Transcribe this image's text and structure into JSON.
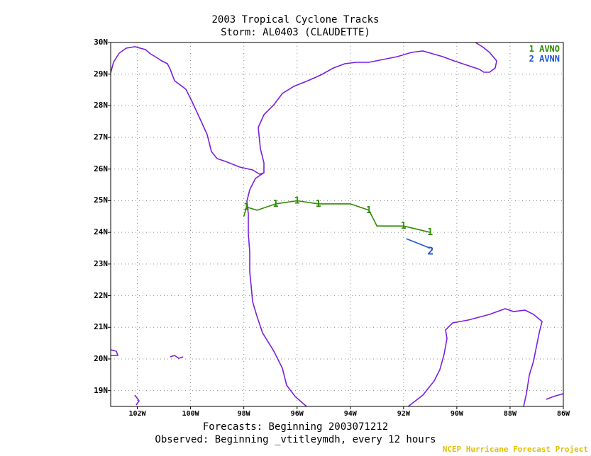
{
  "title": "2003 Tropical Cyclone Tracks",
  "storm": "Storm: AL0403 (CLAUDETTE)",
  "footer_forecasts": "Forecasts: Beginning 2003071212",
  "footer_observed": "Observed: Beginning _vtitleymdh, every 12 hours",
  "credit": "NCEP Hurricane Forecast Project",
  "colors": {
    "coast": "#7a1fe0",
    "avno": "#2e8b00",
    "avnn": "#1f55d6",
    "grid": "#888888",
    "credit": "#e0c000"
  },
  "chart_data": {
    "type": "map-tracks",
    "x_ticks": [
      "102W",
      "100W",
      "98W",
      "96W",
      "94W",
      "92W",
      "90W",
      "88W",
      "86W"
    ],
    "y_ticks": [
      "30N",
      "29N",
      "28N",
      "27N",
      "26N",
      "25N",
      "24N",
      "23N",
      "22N",
      "21N",
      "20N",
      "19N"
    ],
    "legend": [
      {
        "label": "1 AVNO",
        "color": "#2e8b00"
      },
      {
        "label": "2 AVNN",
        "color": "#1f55d6"
      }
    ],
    "tracks": [
      {
        "marker": "1",
        "color": "#2e8b00",
        "points": [
          [
            -91.0,
            24.0
          ],
          [
            -92.0,
            24.2
          ],
          [
            -93.0,
            24.2
          ],
          [
            -93.3,
            24.7
          ],
          [
            -94.0,
            24.9
          ],
          [
            -95.2,
            24.9
          ],
          [
            -96.0,
            25.0
          ],
          [
            -96.8,
            24.9
          ],
          [
            -97.5,
            24.7
          ],
          [
            -97.9,
            24.8
          ],
          [
            -98.0,
            24.5
          ]
        ]
      },
      {
        "marker": "2",
        "color": "#1f55d6",
        "points": [
          [
            -91.9,
            23.8
          ],
          [
            -91.0,
            23.5
          ]
        ]
      }
    ]
  }
}
